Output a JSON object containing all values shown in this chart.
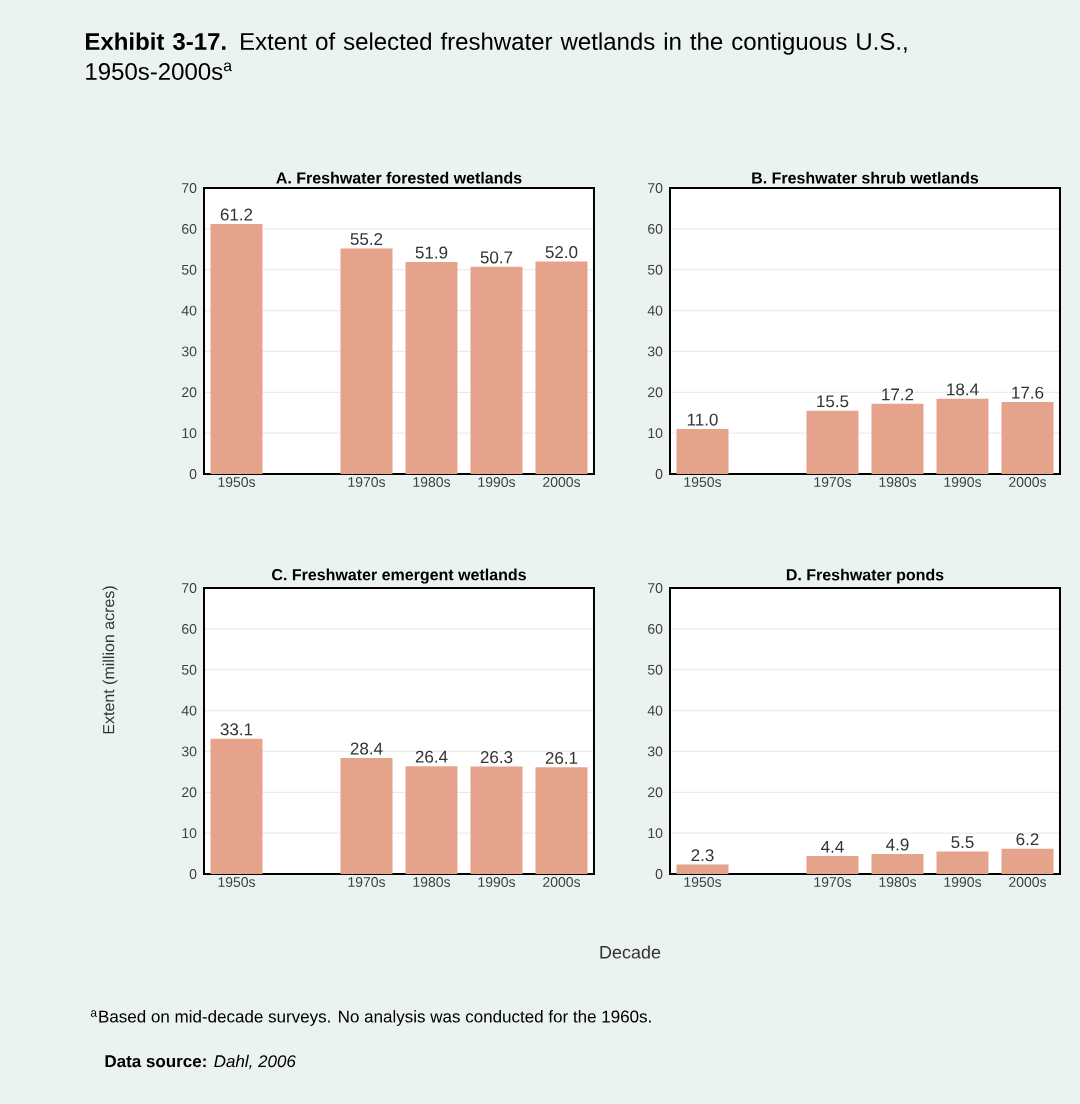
{
  "chart_data": [
    {
      "type": "bar",
      "title": "A. Freshwater forested wetlands",
      "categories": [
        "1950s",
        null,
        "1970s",
        "1980s",
        "1990s",
        "2000s"
      ],
      "values": [
        61.2,
        null,
        55.2,
        51.9,
        50.7,
        52.0
      ],
      "value_labels": [
        "61.2",
        null,
        "55.2",
        "51.9",
        "50.7",
        "52.0"
      ],
      "color": "#e6a38c",
      "ylim": [
        0,
        70
      ],
      "yticks": [
        0,
        10,
        20,
        30,
        40,
        50,
        60,
        70
      ],
      "grid": "y",
      "annotations": [
        "**Exhibit 3-17.** Extent of selected freshwater wetlands in the contiguous U.S., 1950s-2000s$^{a}$",
        "$^{a}$Based on mid-decade surveys. No analysis was conducted for the 1960s.",
        "**Data source:** *Dahl, 2006*"
      ]
    },
    {
      "type": "bar",
      "title": "B. Freshwater shrub wetlands",
      "categories": [
        "1950s",
        null,
        "1970s",
        "1980s",
        "1990s",
        "2000s"
      ],
      "values": [
        11.0,
        null,
        15.5,
        17.2,
        18.4,
        17.6
      ],
      "value_labels": [
        "11.0",
        null,
        "15.5",
        "17.2",
        "18.4",
        "17.6"
      ],
      "color": "#e6a38c",
      "ylim": [
        0,
        70
      ],
      "yticks": [
        0,
        10,
        20,
        30,
        40,
        50,
        60,
        70
      ],
      "grid": "y"
    },
    {
      "type": "bar",
      "title": "C. Freshwater emergent wetlands",
      "xlabel": "Decade",
      "ylabel": "Extent (million acres)",
      "categories": [
        "1950s",
        null,
        "1970s",
        "1980s",
        "1990s",
        "2000s"
      ],
      "values": [
        33.1,
        null,
        28.4,
        26.4,
        26.3,
        26.1
      ],
      "color": "#e6a38c",
      "ylim": [
        0,
        70
      ],
      "yticks": [
        0,
        10,
        20,
        30,
        40,
        50,
        60,
        70
      ],
      "grid": "y",
      "data_labels": true
    },
    {
      "type": "bar",
      "title": "D. Freshwater ponds",
      "categories": [
        "1950s",
        null,
        "1970s",
        "1980s",
        "1990s",
        "2000s"
      ],
      "values": [
        2.3,
        null,
        4.4,
        4.9,
        5.5,
        6.2
      ],
      "color": "#e6a38c",
      "ylim": [
        0,
        70
      ],
      "yticks": [
        0,
        10,
        20,
        30,
        40,
        50,
        60,
        70
      ],
      "grid": "y",
      "data_labels": true
    }
  ]
}
